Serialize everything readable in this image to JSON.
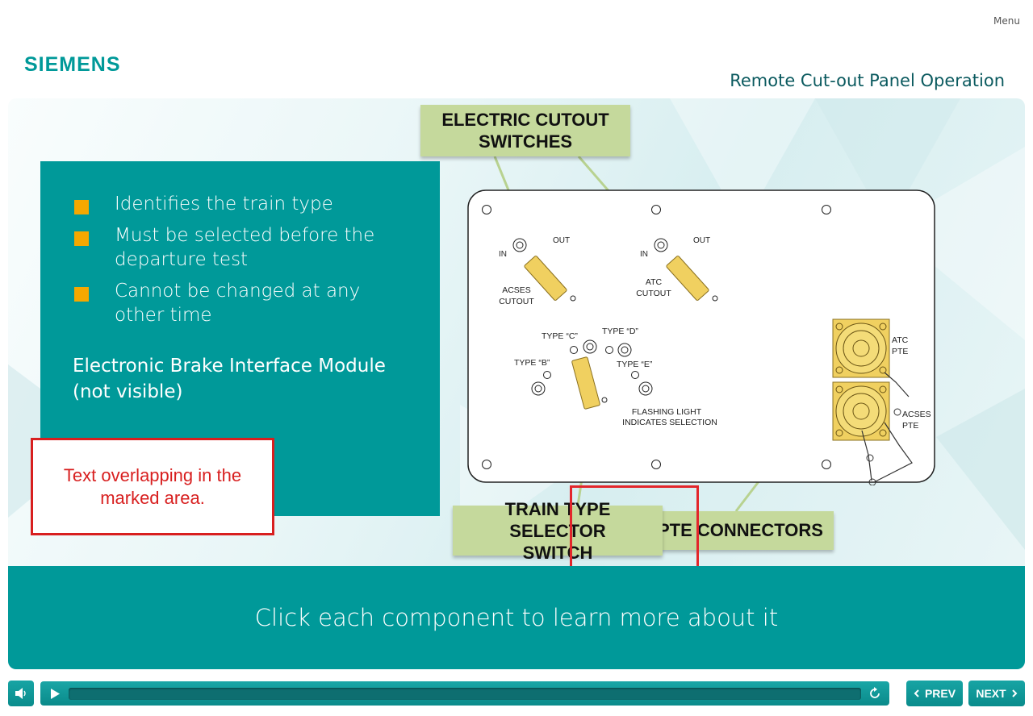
{
  "header": {
    "menu_label": "Menu",
    "logo_text": "SIEMENS",
    "course_title": "Remote Cut-out Panel Operation"
  },
  "info_panel": {
    "bullets": [
      "Identifies the train type",
      "Must be selected before the departure test",
      "Cannot be changed at any other time"
    ],
    "module_text": "Electronic Brake Interface Module (not visible)"
  },
  "annotation_note": "Text overlapping in the marked area.",
  "labels": {
    "electric_cutout": "ELECTRIC CUTOUT SWITCHES",
    "pte_connectors": "PTE CONNECTORS",
    "train_type": "TRAIN TYPE SELECTOR SWITCH"
  },
  "diagram": {
    "in_label": "IN",
    "out_label": "OUT",
    "acses_cutout_l1": "ACSES",
    "acses_cutout_l2": "CUTOUT",
    "atc_cutout_l1": "ATC",
    "atc_cutout_l2": "CUTOUT",
    "type_b": "TYPE “B”",
    "type_c": "TYPE “C”",
    "type_d": "TYPE “D”",
    "type_e": "TYPE “E”",
    "flash_l1": "FLASHING LIGHT",
    "flash_l2": "INDICATES SELECTION",
    "atc_pte_l1": "ATC",
    "atc_pte_l2": "PTE",
    "acses_pte_l1": "ACSES",
    "acses_pte_l2": "PTE"
  },
  "instruction": "Click each component to learn more about it",
  "controls": {
    "prev_label": "PREV",
    "next_label": "NEXT",
    "volume_icon": "speaker-icon",
    "play_icon": "play-icon",
    "replay_icon": "replay-icon"
  },
  "colors": {
    "teal": "#009999",
    "bullet": "#f5a800",
    "label_bg": "#c5d99c",
    "alert_red": "#d81f1f",
    "connector_gold": "#f0d060"
  }
}
